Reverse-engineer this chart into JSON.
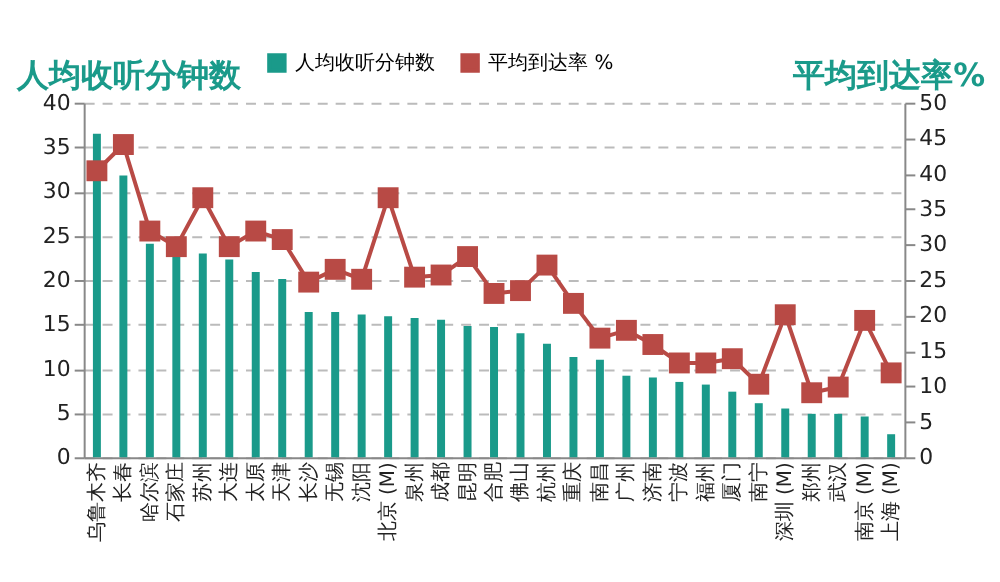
{
  "chart_data": {
    "type": "bar",
    "ylabel": "人均收听分钟数",
    "y2label": "平均到达率%",
    "categories": [
      "乌鲁木齐",
      "长春",
      "哈尔滨",
      "石家庄",
      "苏州",
      "大连",
      "太原",
      "天津",
      "长沙",
      "无锡",
      "沈阳",
      "北京 (M)",
      "泉州",
      "成都",
      "昆明",
      "合肥",
      "佛山",
      "杭州",
      "重庆",
      "南昌",
      "广州",
      "济南",
      "宁波",
      "福州",
      "厦门",
      "南宁",
      "深圳 (M)",
      "郑州",
      "武汉",
      "南京 (M)",
      "上海 (M)"
    ],
    "series": [
      {
        "name": "人均收听分钟数",
        "color": "#1a9a8a",
        "values": [
          36.5,
          31.8,
          24.1,
          23.3,
          23.0,
          22.3,
          20.9,
          20.1,
          16.4,
          16.4,
          16.1,
          15.9,
          15.7,
          15.5,
          14.8,
          14.7,
          14.0,
          12.8,
          11.3,
          11.0,
          9.2,
          9.0,
          8.5,
          8.2,
          7.4,
          6.1,
          5.5,
          4.9,
          4.9,
          4.6,
          2.6
        ]
      },
      {
        "name": "平均到达率 %",
        "type": "line",
        "axis": "y2",
        "color": "#b84a45",
        "marker": "square",
        "values": [
          40.4,
          44.1,
          31.9,
          29.7,
          36.6,
          29.7,
          31.9,
          30.7,
          24.7,
          26.5,
          25.1,
          36.6,
          25.4,
          25.7,
          28.3,
          23.1,
          23.5,
          27.1,
          21.7,
          16.8,
          17.9,
          15.9,
          13.3,
          13.3,
          13.9,
          10.3,
          20.1,
          9.1,
          9.9,
          19.3,
          11.9
        ]
      }
    ],
    "ylim": [
      0,
      40
    ],
    "yticks": [
      0,
      5,
      10,
      15,
      20,
      25,
      30,
      35,
      40
    ],
    "y2lim": [
      0,
      50
    ],
    "y2ticks": [
      0,
      5,
      10,
      15,
      20,
      25,
      30,
      35,
      40,
      45,
      50
    ],
    "grid": "y",
    "legend": "top"
  }
}
